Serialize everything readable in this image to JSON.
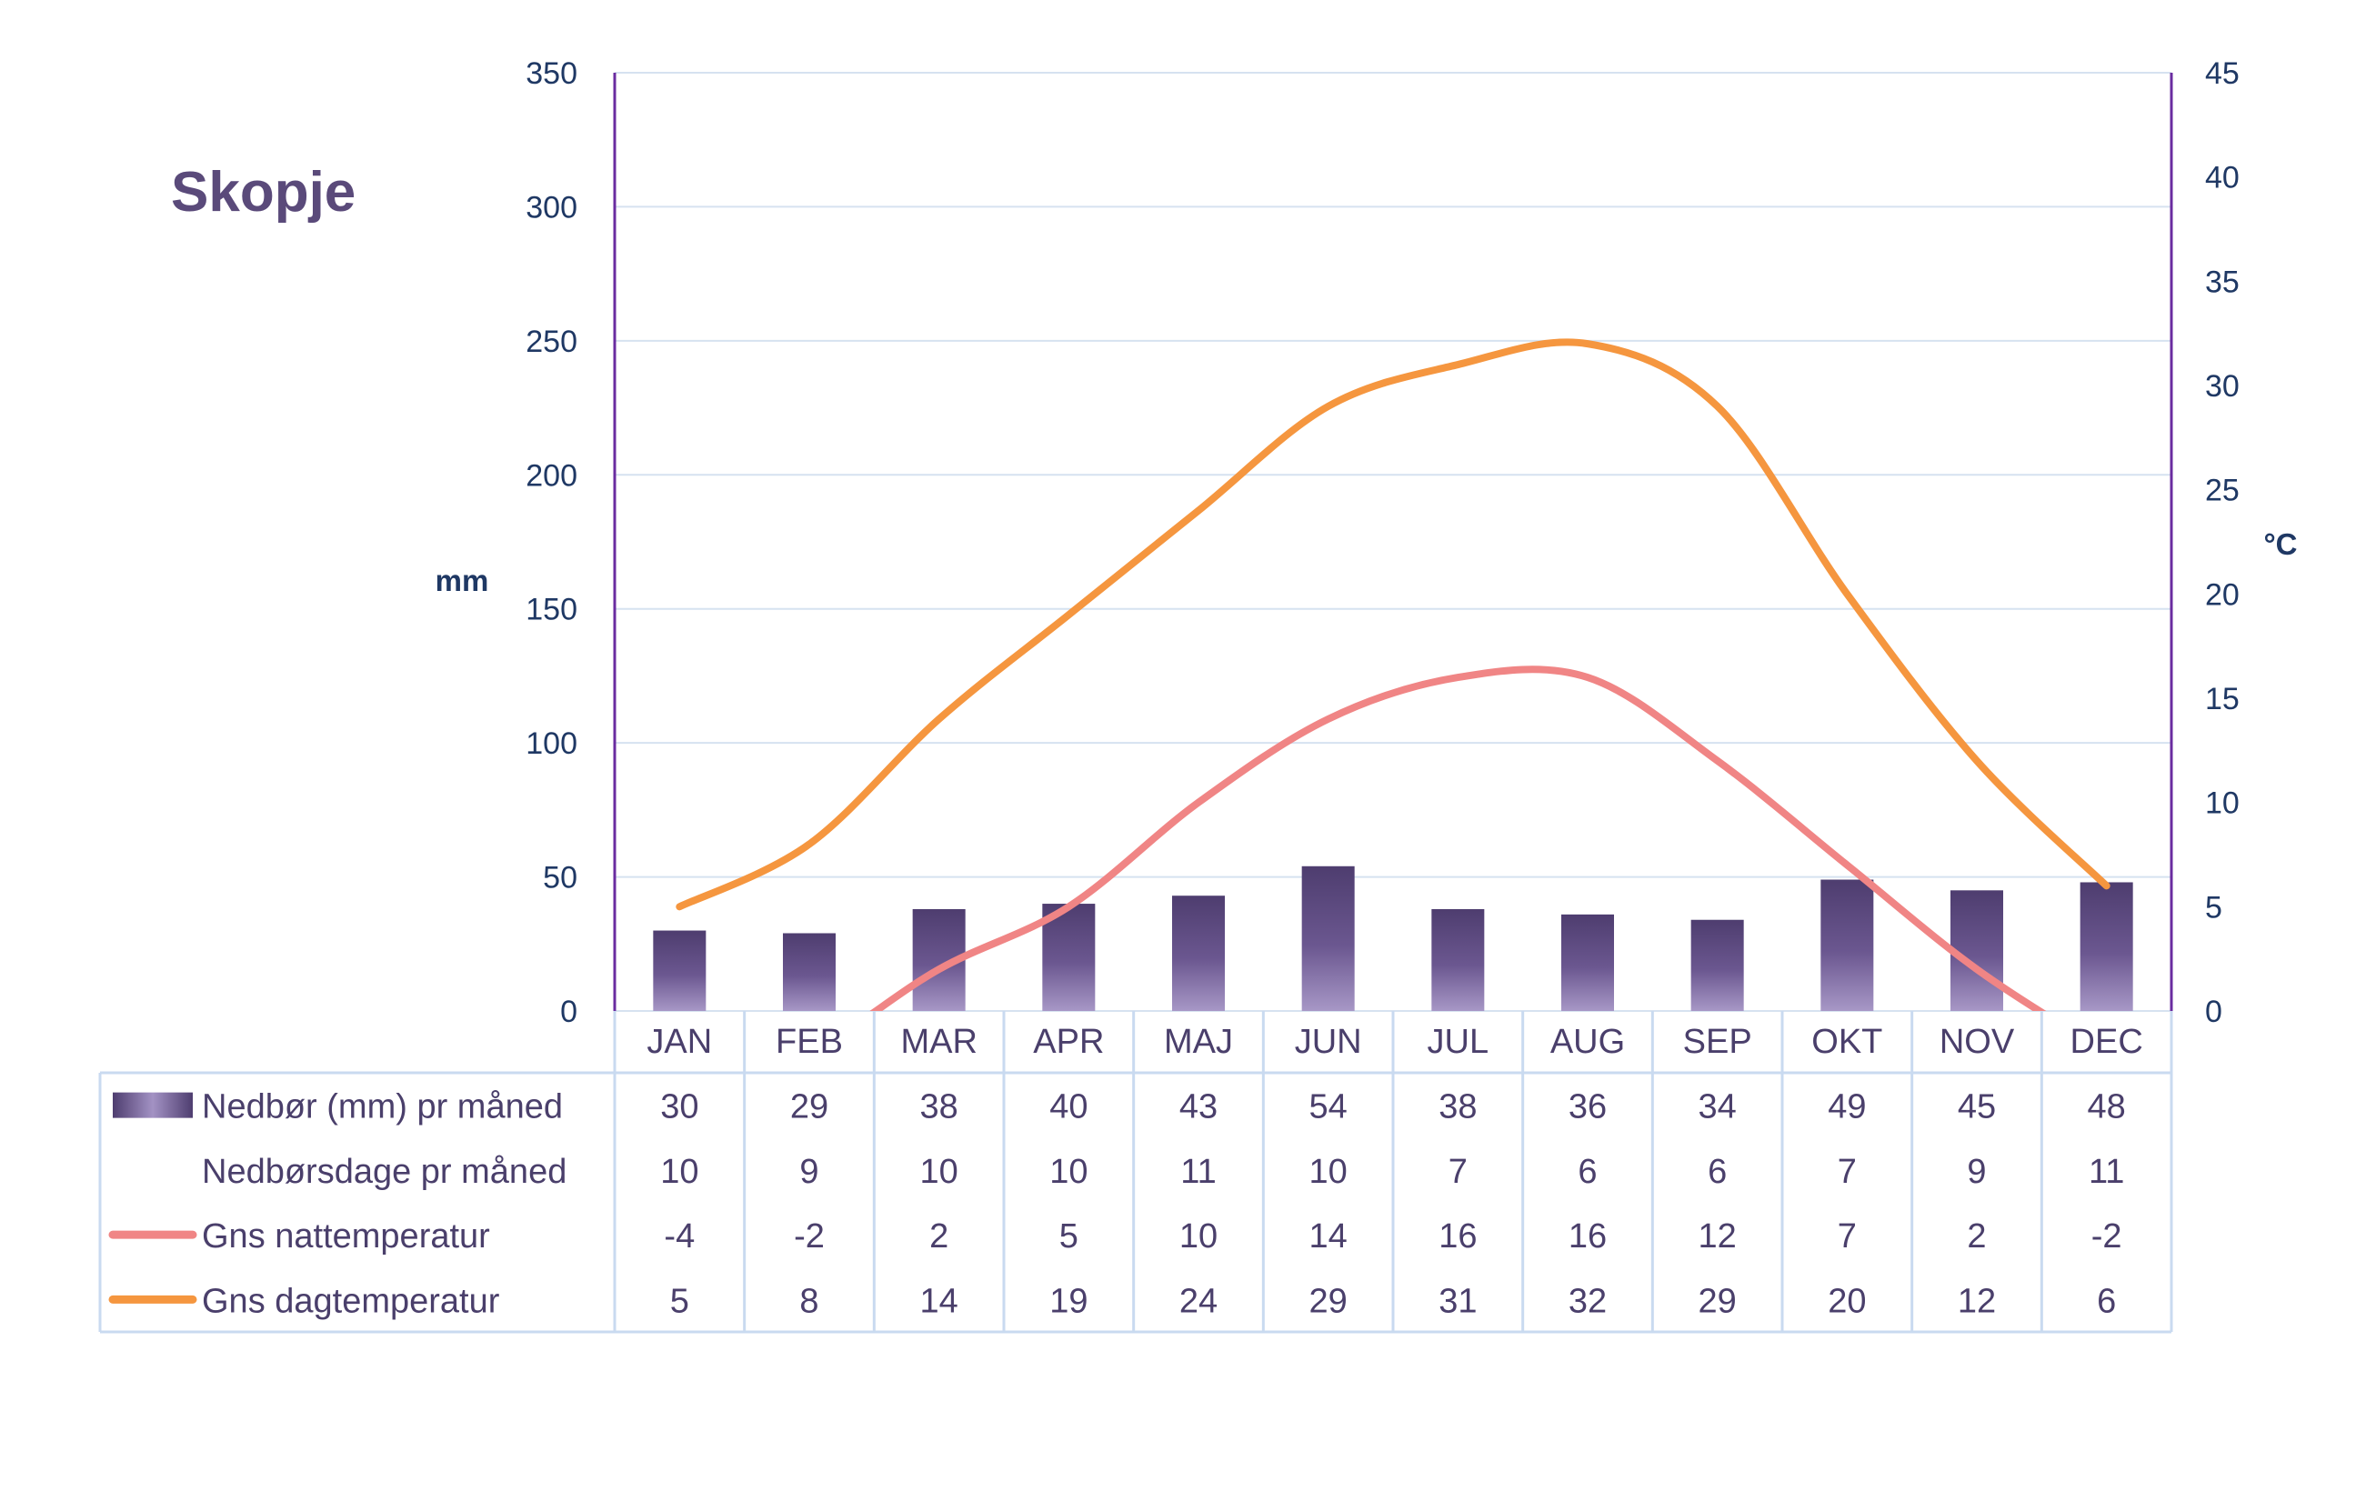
{
  "chart_data": {
    "type": "bar",
    "title": "Skopje",
    "categories": [
      "JAN",
      "FEB",
      "MAR",
      "APR",
      "MAJ",
      "JUN",
      "JUL",
      "AUG",
      "SEP",
      "OKT",
      "NOV",
      "DEC"
    ],
    "y_left": {
      "label": "mm",
      "ylim": [
        0,
        350
      ],
      "ticks": [
        "0",
        "50",
        "100",
        "150",
        "200",
        "250",
        "300",
        "350"
      ]
    },
    "y_right": {
      "label": "°C",
      "ylim": [
        0,
        45
      ],
      "ticks": [
        "0",
        "5",
        "10",
        "15",
        "20",
        "25",
        "30",
        "35",
        "40",
        "45"
      ]
    },
    "grid": true,
    "legend": "table-below",
    "series": [
      {
        "name": "Nedbør (mm) pr måned",
        "kind": "bar",
        "axis": "left",
        "color": "#5b4a7e",
        "values": [
          30,
          29,
          38,
          40,
          43,
          54,
          38,
          36,
          34,
          49,
          45,
          48
        ]
      },
      {
        "name": "Nedbørsdage pr måned",
        "kind": "table-only",
        "values": [
          10,
          9,
          10,
          10,
          11,
          10,
          7,
          6,
          6,
          7,
          9,
          11
        ]
      },
      {
        "name": "Gns nattemperatur",
        "kind": "line",
        "axis": "right",
        "color": "#f08585",
        "values": [
          -4,
          -2,
          2,
          5,
          10,
          14,
          16,
          16,
          12,
          7,
          2,
          -2
        ]
      },
      {
        "name": "Gns dagtemperatur",
        "kind": "line",
        "axis": "right",
        "color": "#f5963f",
        "values": [
          5,
          8,
          14,
          19,
          24,
          29,
          31,
          32,
          29,
          20,
          12,
          6
        ]
      }
    ]
  },
  "colors": {
    "title": "#5a4a7a",
    "axis_text": "#1f3864",
    "axis_line": "#6a2ca0",
    "grid": "#d6e2f0",
    "table_border": "#c9daf0",
    "table_text": "#4a3f6b"
  }
}
